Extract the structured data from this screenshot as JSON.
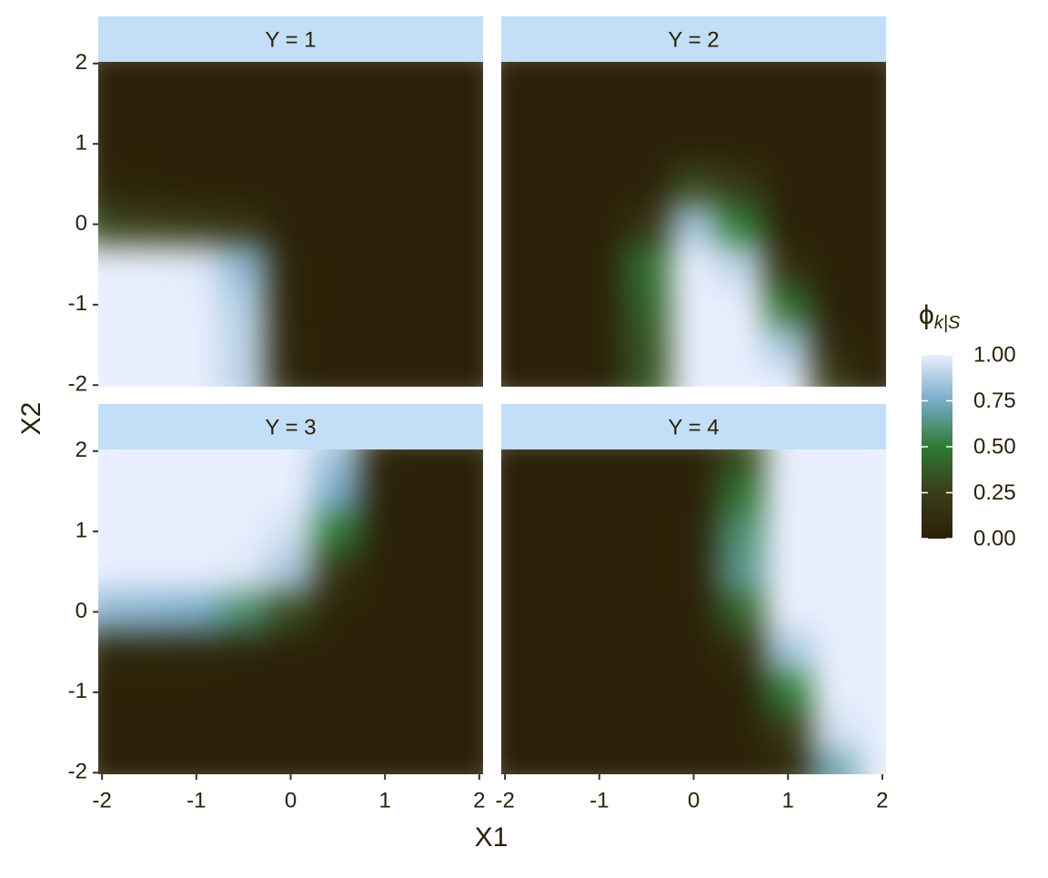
{
  "chart_data": {
    "type": "heatmap",
    "x_label": "X1",
    "y_label": "X2",
    "x": [
      -2,
      -1.5,
      -1,
      -0.5,
      0,
      0.5,
      1,
      1.5,
      2
    ],
    "y": [
      -2,
      -1.5,
      -1,
      -0.5,
      0,
      0.5,
      1,
      1.5,
      2
    ],
    "xlim": [
      -2.04,
      2.04
    ],
    "ylim": [
      -2.02,
      2.02
    ],
    "xticks": [
      -2,
      -1,
      0,
      1,
      2
    ],
    "yticks": [
      -2,
      -1,
      0,
      1,
      2
    ],
    "facets": [
      {
        "label": "Y = 1",
        "z": [
          [
            1,
            1,
            1,
            0.9,
            0.05,
            0,
            0,
            0,
            0
          ],
          [
            1,
            1,
            1,
            0.9,
            0.03,
            0,
            0,
            0,
            0
          ],
          [
            1,
            1,
            1,
            0.88,
            0.02,
            0,
            0,
            0,
            0
          ],
          [
            1,
            1,
            0.98,
            0.8,
            0.02,
            0,
            0,
            0,
            0
          ],
          [
            0.3,
            0.25,
            0.2,
            0.15,
            0,
            0,
            0,
            0,
            0
          ],
          [
            0.03,
            0.02,
            0,
            0,
            0,
            0,
            0,
            0,
            0
          ],
          [
            0,
            0,
            0,
            0,
            0,
            0,
            0,
            0,
            0
          ],
          [
            0,
            0,
            0,
            0,
            0,
            0,
            0,
            0,
            0
          ],
          [
            0,
            0,
            0,
            0,
            0,
            0,
            0,
            0,
            0
          ]
        ]
      },
      {
        "label": "Y = 2",
        "z": [
          [
            0,
            0,
            0,
            0.35,
            1,
            1,
            1,
            0.25,
            0
          ],
          [
            0,
            0,
            0,
            0.35,
            1,
            1,
            0.85,
            0.05,
            0
          ],
          [
            0,
            0,
            0,
            0.4,
            1,
            1,
            0.45,
            0,
            0
          ],
          [
            0,
            0,
            0,
            0.45,
            1,
            0.9,
            0.1,
            0,
            0
          ],
          [
            0,
            0,
            0,
            0.15,
            0.85,
            0.5,
            0,
            0,
            0
          ],
          [
            0,
            0,
            0,
            0,
            0.3,
            0.2,
            0,
            0,
            0
          ],
          [
            0,
            0,
            0,
            0,
            0,
            0,
            0,
            0,
            0
          ],
          [
            0,
            0,
            0,
            0,
            0,
            0,
            0,
            0,
            0
          ],
          [
            0,
            0,
            0,
            0,
            0,
            0,
            0,
            0,
            0
          ]
        ]
      },
      {
        "label": "Y = 3",
        "z": [
          [
            0,
            0,
            0,
            0,
            0,
            0,
            0,
            0,
            0
          ],
          [
            0,
            0,
            0,
            0,
            0,
            0,
            0,
            0,
            0
          ],
          [
            0,
            0,
            0,
            0,
            0,
            0,
            0,
            0,
            0
          ],
          [
            0.05,
            0.05,
            0.05,
            0.03,
            0,
            0,
            0,
            0,
            0
          ],
          [
            0.8,
            0.78,
            0.75,
            0.6,
            0.3,
            0.02,
            0,
            0,
            0
          ],
          [
            1,
            1,
            1,
            0.98,
            0.85,
            0.15,
            0,
            0,
            0
          ],
          [
            1,
            1,
            1,
            1,
            0.95,
            0.5,
            0,
            0,
            0
          ],
          [
            1,
            1,
            1,
            1,
            1,
            0.75,
            0,
            0,
            0
          ],
          [
            1,
            1,
            1,
            1,
            1,
            0.85,
            0.02,
            0,
            0
          ]
        ]
      },
      {
        "label": "Y = 4",
        "z": [
          [
            0,
            0,
            0,
            0,
            0,
            0,
            0.05,
            0.7,
            1
          ],
          [
            0,
            0,
            0,
            0,
            0,
            0,
            0.2,
            0.95,
            1
          ],
          [
            0,
            0,
            0,
            0,
            0,
            0,
            0.5,
            1,
            1
          ],
          [
            0,
            0,
            0,
            0,
            0,
            0.1,
            0.85,
            1,
            1
          ],
          [
            0,
            0,
            0,
            0,
            0,
            0.4,
            1,
            1,
            1
          ],
          [
            0,
            0,
            0,
            0,
            0.02,
            0.65,
            1,
            1,
            1
          ],
          [
            0,
            0,
            0,
            0,
            0.02,
            0.6,
            1,
            1,
            1
          ],
          [
            0,
            0,
            0,
            0,
            0,
            0.45,
            1,
            1,
            1
          ],
          [
            0,
            0,
            0,
            0,
            0,
            0.3,
            1,
            1,
            1
          ]
        ]
      }
    ],
    "legend": {
      "title": "ϕ",
      "subscript": "k|S",
      "zlim": [
        0,
        1
      ],
      "ticks": [
        {
          "value": 0,
          "label": "0.00"
        },
        {
          "value": 0.25,
          "label": "0.25"
        },
        {
          "value": 0.5,
          "label": "0.50"
        },
        {
          "value": 0.75,
          "label": "0.75"
        },
        {
          "value": 1,
          "label": "1.00"
        }
      ],
      "colors": [
        "#2b2108",
        "#3a3d18",
        "#2f7a35",
        "#78abc9",
        "#e8eefd"
      ]
    }
  }
}
